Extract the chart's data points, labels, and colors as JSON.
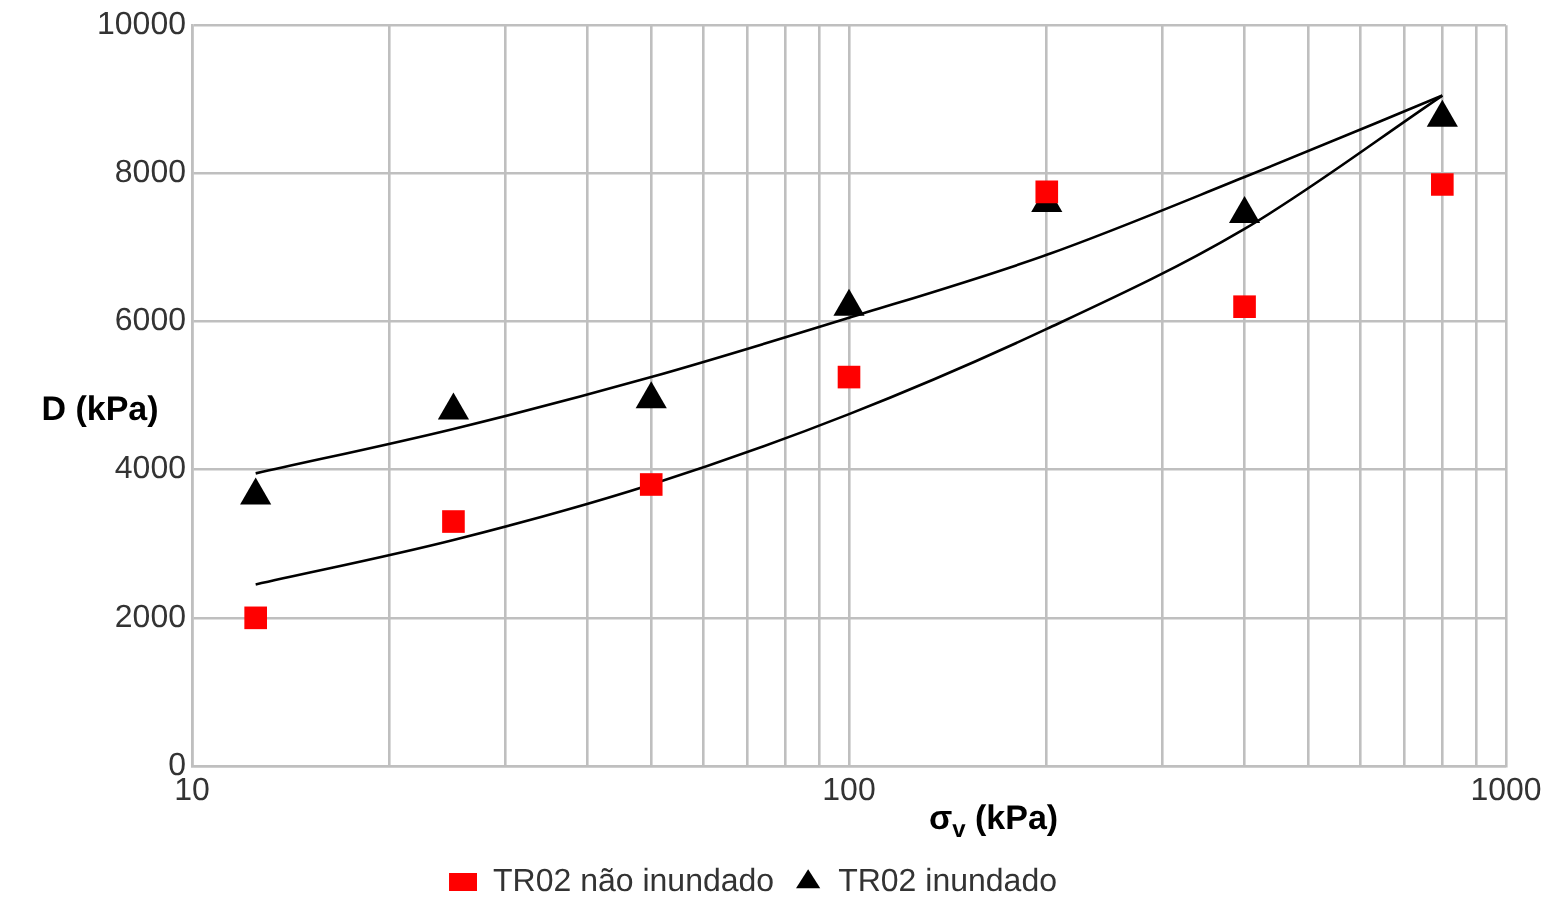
{
  "chart_data": {
    "type": "scatter",
    "xlabel": "σ$_{v}$ (kPa)",
    "ylabel": "D (kPa)",
    "log": "x",
    "xlim": [
      10,
      1000
    ],
    "ylim": [
      0,
      10000
    ],
    "xticks": [
      10,
      {
        "value": 20,
        "label": null
      },
      {
        "value": 30,
        "label": null
      },
      {
        "value": 40,
        "label": null
      },
      {
        "value": 50,
        "label": null
      },
      {
        "value": 60,
        "label": null
      },
      {
        "value": 70,
        "label": null
      },
      {
        "value": 80,
        "label": null
      },
      {
        "value": 90,
        "label": null
      },
      100,
      {
        "value": 200,
        "label": null
      },
      {
        "value": 300,
        "label": null
      },
      {
        "value": 400,
        "label": null
      },
      {
        "value": 500,
        "label": null
      },
      {
        "value": 600,
        "label": null
      },
      {
        "value": 700,
        "label": null
      },
      {
        "value": 800,
        "label": null
      },
      {
        "value": 900,
        "label": null
      },
      1000
    ],
    "yticks": [
      0,
      2000,
      4000,
      6000,
      8000,
      10000
    ],
    "grid": true,
    "legend": "bottom",
    "x": [
      12.5,
      25,
      50,
      100,
      200,
      400,
      800
    ],
    "series": [
      {
        "name": "TR02 não inundado",
        "marker": "square",
        "color": "#ff0000",
        "values": [
          2000,
          3300,
          3800,
          5250,
          7750,
          6200,
          7850
        ]
      },
      {
        "name": "TR02 inundado",
        "marker": "triangle",
        "color": "#000000",
        "values": [
          3650,
          4800,
          4950,
          6200,
          7600,
          7450,
          8750
        ]
      },
      {
        "type": "line",
        "marker": "none",
        "color": "#000000",
        "values": [
          3950,
          4550,
          5250,
          6050,
          6900,
          7950,
          9050
        ]
      },
      {
        "type": "line",
        "marker": "none",
        "color": "#000000",
        "values": [
          2450,
          3050,
          3800,
          4750,
          5900,
          7250,
          9050
        ]
      }
    ]
  }
}
